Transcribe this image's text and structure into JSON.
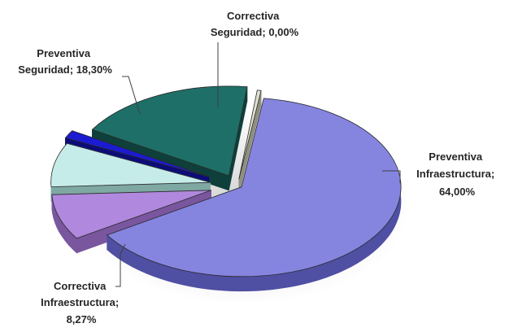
{
  "chart_data": {
    "type": "pie",
    "title": "",
    "style": "3d-exploded",
    "slices": [
      {
        "label_lines": [
          "Preventiva",
          "Infraestructura;",
          "64,00%"
        ],
        "value": 64.0,
        "color": "#8585e0",
        "side_color": "#4f4fa3"
      },
      {
        "label_lines": [
          "Correctiva",
          "Infraestructura;",
          "8,27%"
        ],
        "value": 8.27,
        "color": "#b088dd",
        "side_color": "#7a569f"
      },
      {
        "label_lines": [],
        "value": 8.0,
        "color": "#c6ecea",
        "side_color": "#7fa8a3"
      },
      {
        "label_lines": [],
        "value": 1.43,
        "color": "#1b1bd1",
        "side_color": "#0c0c78"
      },
      {
        "label_lines": [
          "Preventiva",
          "Seguridad; 18,30%"
        ],
        "value": 18.3,
        "color": "#1e6f67",
        "side_color": "#0f3f3a"
      },
      {
        "label_lines": [
          "Correctiva",
          "Seguridad; 0,00%"
        ],
        "value": 0.0,
        "color": "#e0e0d2",
        "side_color": "#8f8f80"
      }
    ]
  }
}
